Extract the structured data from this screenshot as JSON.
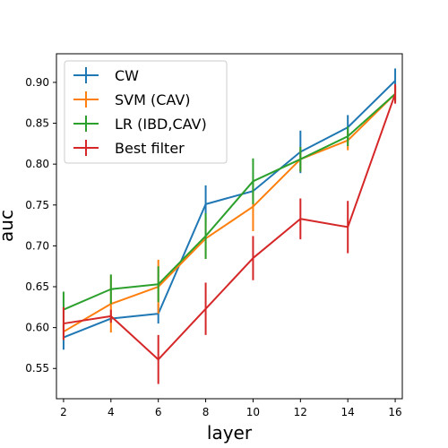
{
  "chart_data": {
    "type": "line",
    "title": "",
    "xlabel": "layer",
    "ylabel": "auc",
    "x": [
      2,
      4,
      6,
      8,
      10,
      12,
      14,
      16
    ],
    "xticks": [
      "2",
      "4",
      "6",
      "8",
      "10",
      "12",
      "14",
      "16"
    ],
    "yticks": [
      "0.55",
      "0.60",
      "0.65",
      "0.70",
      "0.75",
      "0.80",
      "0.85",
      "0.90"
    ],
    "xlim": [
      1.7,
      16.3
    ],
    "ylim": [
      0.513,
      0.935
    ],
    "grid": false,
    "legend_position": "top-left",
    "series": [
      {
        "name": "CW",
        "color": "#1f77b4",
        "values": [
          0.588,
          0.611,
          0.617,
          0.751,
          0.767,
          0.815,
          0.845,
          0.902
        ],
        "errors": [
          0.015,
          0.005,
          0.012,
          0.023,
          0.01,
          0.026,
          0.015,
          0.015
        ]
      },
      {
        "name": "SVM (CAV)",
        "color": "#ff7f0e",
        "values": [
          0.595,
          0.629,
          0.65,
          0.709,
          0.748,
          0.806,
          0.829,
          0.886
        ],
        "errors": [
          0.01,
          0.035,
          0.033,
          0.025,
          0.03,
          0.015,
          0.012,
          0.008
        ]
      },
      {
        "name": "LR (IBD,CAV)",
        "color": "#2ca02c",
        "values": [
          0.622,
          0.647,
          0.653,
          0.712,
          0.779,
          0.806,
          0.834,
          0.886
        ],
        "errors": [
          0.022,
          0.018,
          0.022,
          0.028,
          0.028,
          0.015,
          0.012,
          0.01
        ]
      },
      {
        "name": "Best filter",
        "color": "#d62728",
        "values": [
          0.605,
          0.614,
          0.561,
          0.623,
          0.685,
          0.733,
          0.723,
          0.886
        ],
        "errors": [
          0.02,
          0.008,
          0.03,
          0.032,
          0.027,
          0.025,
          0.032,
          0.012
        ]
      }
    ]
  }
}
